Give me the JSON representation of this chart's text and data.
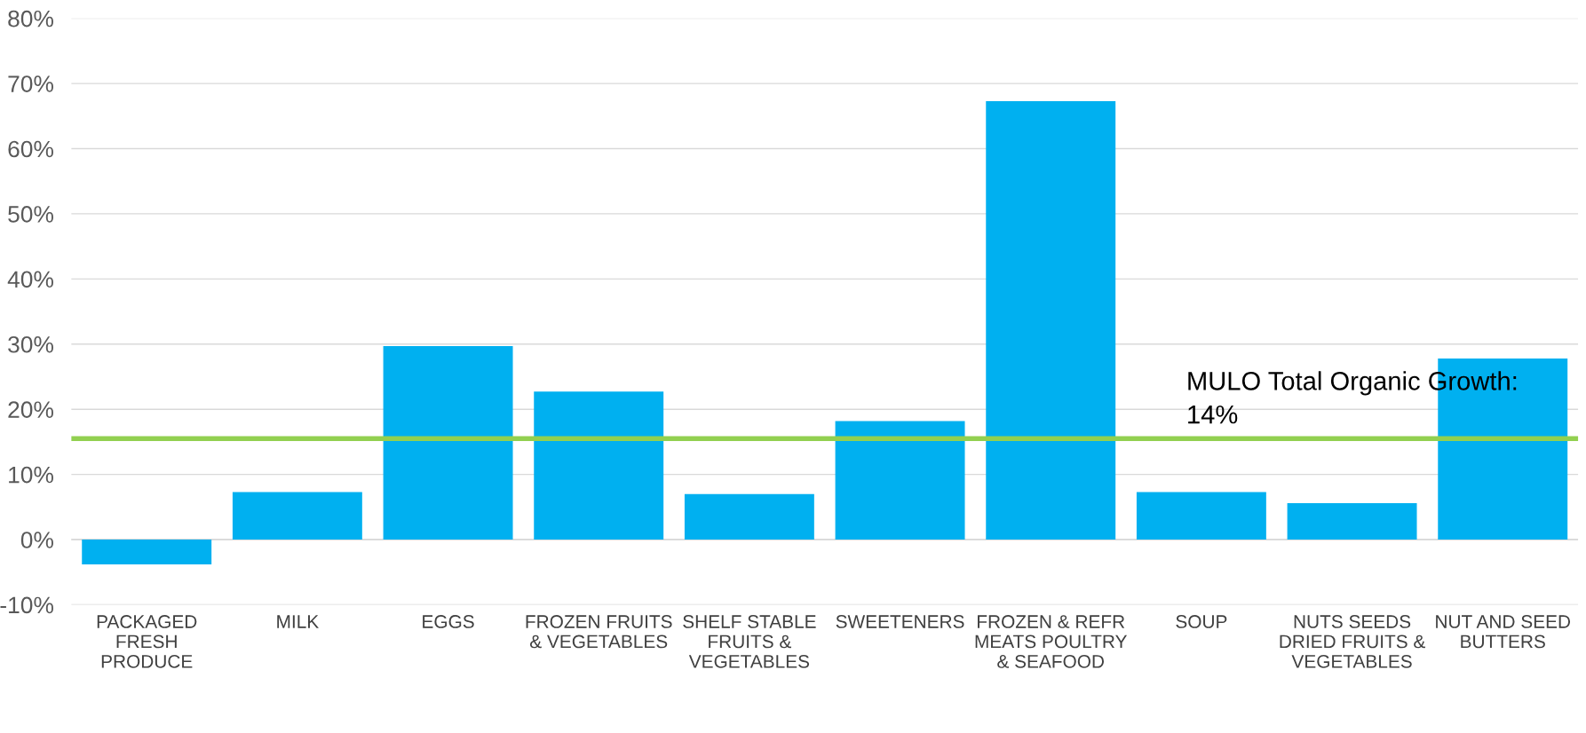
{
  "chart_data": {
    "type": "bar",
    "categories": [
      "PACKAGED\nFRESH\nPRODUCE",
      "MILK",
      "EGGS",
      "FROZEN FRUITS\n& VEGETABLES",
      "SHELF STABLE\nFRUITS &\nVEGETABLES",
      "SWEETENERS",
      "FROZEN & REFR\nMEATS POULTRY\n& SEAFOOD",
      "SOUP",
      "NUTS SEEDS\nDRIED FRUITS &\nVEGETABLES",
      "NUT AND SEED\nBUTTERS"
    ],
    "values": [
      -3.8,
      7.3,
      29.7,
      22.7,
      7.0,
      18.2,
      67.3,
      7.3,
      5.6,
      27.8
    ],
    "color": "#00b0f0",
    "ylim": [
      -10,
      80
    ],
    "yticks": [
      {
        "value": -10,
        "label": "-10%"
      },
      {
        "value": 0,
        "label": "0%"
      },
      {
        "value": 10,
        "label": "10%"
      },
      {
        "value": 20,
        "label": "20%"
      },
      {
        "value": 30,
        "label": "30%"
      },
      {
        "value": 40,
        "label": "40%"
      },
      {
        "value": 50,
        "label": "50%"
      },
      {
        "value": 60,
        "label": "60%"
      },
      {
        "value": 70,
        "label": "70%"
      },
      {
        "value": 80,
        "label": "80%"
      }
    ],
    "grid": "y",
    "ref_lines": [
      {
        "axis": "y",
        "value": 15.5,
        "color": "#92d050"
      }
    ],
    "annotations": [
      "MULO Total Organic Growth:\n14%"
    ]
  }
}
